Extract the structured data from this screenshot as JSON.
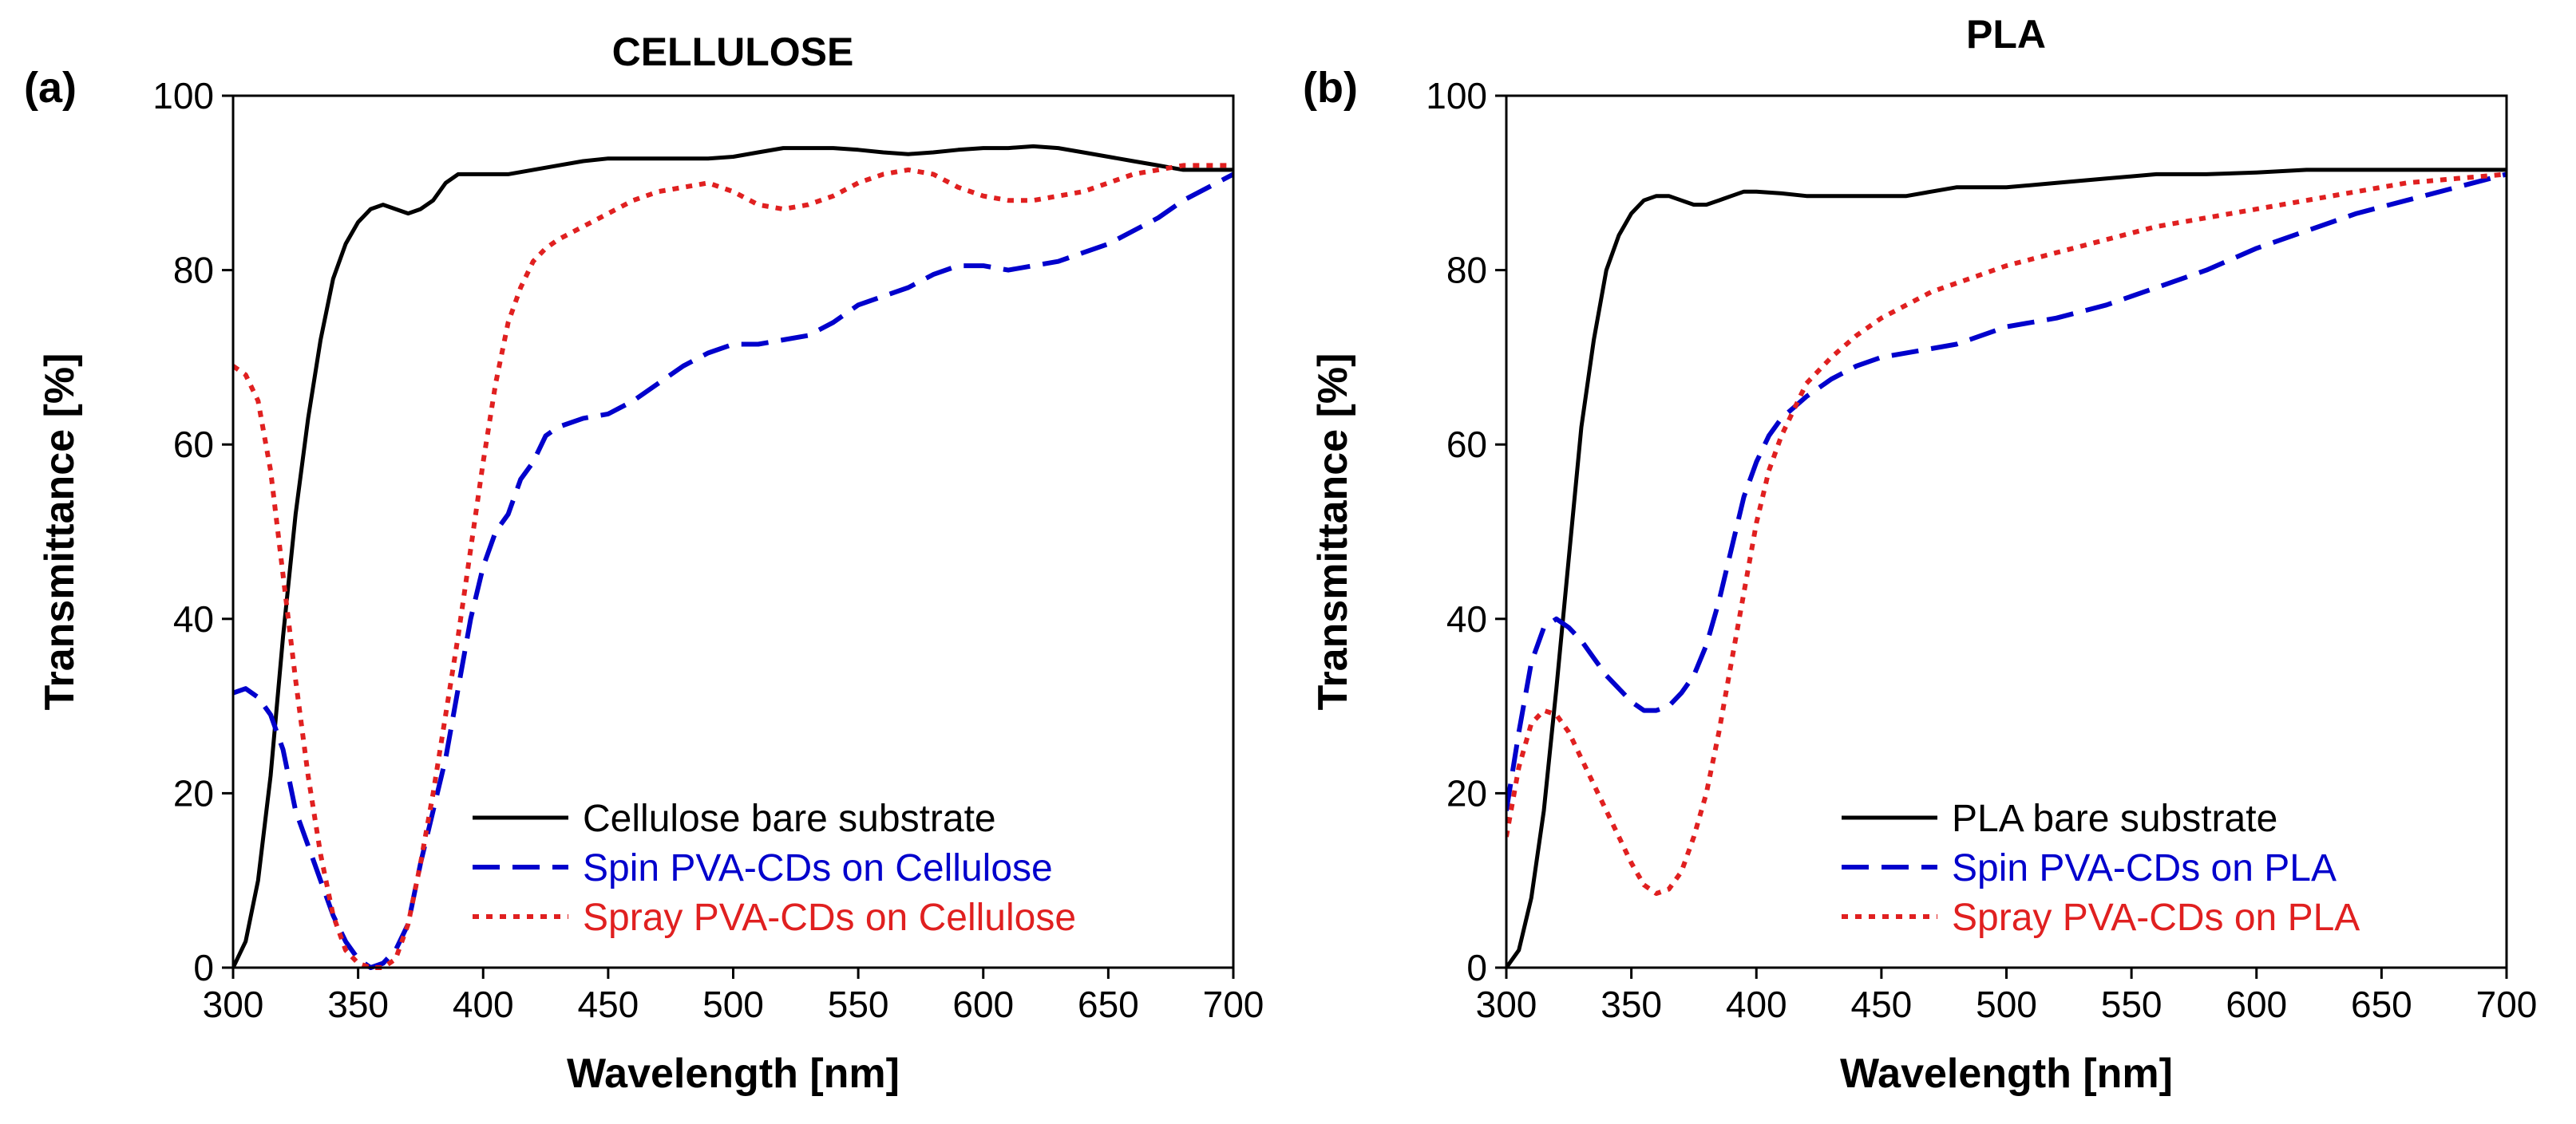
{
  "colors": {
    "bare": "#000000",
    "spin": "#0000CC",
    "spray": "#E02020"
  },
  "chart_data": [
    {
      "type": "line",
      "panel_label": "(a)",
      "title": "CELLULOSE",
      "xlabel": "Wavelength [nm]",
      "ylabel": "Transmittance [%]",
      "xlim": [
        300,
        700
      ],
      "ylim": [
        0,
        100
      ],
      "xticks": [
        300,
        350,
        400,
        450,
        500,
        550,
        600,
        650,
        700
      ],
      "yticks": [
        0,
        20,
        40,
        60,
        80,
        100
      ],
      "legend_position": "bottom-right",
      "series": [
        {
          "name": "Cellulose bare substrate",
          "style": "solid",
          "color_key": "bare",
          "x": [
            300,
            305,
            310,
            315,
            320,
            325,
            330,
            335,
            340,
            345,
            350,
            355,
            360,
            365,
            370,
            375,
            380,
            385,
            390,
            395,
            400,
            410,
            420,
            430,
            440,
            450,
            460,
            470,
            480,
            490,
            500,
            510,
            520,
            530,
            540,
            550,
            560,
            570,
            580,
            590,
            600,
            610,
            620,
            630,
            640,
            650,
            660,
            670,
            680,
            690,
            700
          ],
          "y": [
            0,
            3,
            10,
            22,
            38,
            52,
            63,
            72,
            79,
            83,
            85.5,
            87,
            87.5,
            87,
            86.5,
            87,
            88,
            90,
            91,
            91,
            91,
            91,
            91.5,
            92,
            92.5,
            92.8,
            92.8,
            92.8,
            92.8,
            92.8,
            93,
            93.5,
            94,
            94,
            94,
            93.8,
            93.5,
            93.3,
            93.5,
            93.8,
            94,
            94,
            94.2,
            94,
            93.5,
            93,
            92.5,
            92,
            91.5,
            91.5,
            91.5
          ]
        },
        {
          "name": "Spin PVA-CDs on Cellulose",
          "style": "dashed",
          "color_key": "spin",
          "x": [
            300,
            305,
            310,
            315,
            320,
            325,
            330,
            335,
            340,
            345,
            350,
            355,
            360,
            365,
            370,
            375,
            380,
            385,
            390,
            395,
            400,
            405,
            410,
            415,
            420,
            425,
            430,
            440,
            450,
            460,
            470,
            480,
            490,
            500,
            510,
            520,
            530,
            540,
            550,
            560,
            570,
            580,
            590,
            600,
            610,
            620,
            630,
            640,
            650,
            660,
            670,
            680,
            690,
            700
          ],
          "y": [
            31.5,
            32,
            31,
            29,
            25,
            18,
            14,
            10,
            6,
            3,
            1,
            0,
            0.5,
            2,
            5,
            12,
            18,
            24,
            32,
            40,
            46,
            50,
            52,
            56,
            58,
            61,
            62,
            63,
            63.5,
            65,
            67,
            69,
            70.5,
            71.5,
            71.5,
            72,
            72.5,
            74,
            76,
            77,
            78,
            79.5,
            80.5,
            80.5,
            80,
            80.5,
            81,
            82,
            83,
            84.5,
            86,
            88,
            89.5,
            91
          ]
        },
        {
          "name": "Spray PVA-CDs on Cellulose",
          "style": "dotted",
          "color_key": "spray",
          "x": [
            300,
            305,
            310,
            315,
            320,
            325,
            330,
            335,
            340,
            345,
            350,
            355,
            360,
            365,
            370,
            375,
            380,
            385,
            390,
            395,
            400,
            405,
            410,
            415,
            420,
            425,
            430,
            440,
            450,
            460,
            470,
            480,
            490,
            500,
            510,
            520,
            530,
            540,
            550,
            560,
            570,
            580,
            590,
            600,
            610,
            620,
            630,
            640,
            650,
            660,
            670,
            680,
            690,
            700
          ],
          "y": [
            69,
            68,
            65,
            57,
            45,
            33,
            22,
            13,
            6,
            2,
            0.5,
            0,
            0,
            1,
            5,
            12,
            20,
            29,
            38,
            48,
            58,
            67,
            74,
            78,
            81,
            82.5,
            83.5,
            85,
            86.5,
            88,
            89,
            89.5,
            90,
            89,
            87.5,
            87,
            87.5,
            88.5,
            90,
            91,
            91.5,
            91,
            89.5,
            88.5,
            88,
            88,
            88.5,
            89,
            90,
            91,
            91.5,
            92,
            92,
            92
          ]
        }
      ]
    },
    {
      "type": "line",
      "panel_label": "(b)",
      "title": "PLA",
      "xlabel": "Wavelength [nm]",
      "ylabel": "Transmittance [%]",
      "xlim": [
        300,
        700
      ],
      "ylim": [
        0,
        100
      ],
      "xticks": [
        300,
        350,
        400,
        450,
        500,
        550,
        600,
        650,
        700
      ],
      "yticks": [
        0,
        20,
        40,
        60,
        80,
        100
      ],
      "legend_position": "bottom-right",
      "series": [
        {
          "name": "PLA bare substrate",
          "style": "solid",
          "color_key": "bare",
          "x": [
            300,
            305,
            310,
            315,
            320,
            325,
            330,
            335,
            340,
            345,
            350,
            355,
            360,
            365,
            370,
            375,
            380,
            385,
            390,
            395,
            400,
            410,
            420,
            430,
            440,
            450,
            460,
            470,
            480,
            490,
            500,
            520,
            540,
            560,
            580,
            600,
            620,
            640,
            660,
            680,
            700
          ],
          "y": [
            0,
            2,
            8,
            18,
            32,
            47,
            62,
            72,
            80,
            84,
            86.5,
            88,
            88.5,
            88.5,
            88,
            87.5,
            87.5,
            88,
            88.5,
            89,
            89,
            88.8,
            88.5,
            88.5,
            88.5,
            88.5,
            88.5,
            89,
            89.5,
            89.5,
            89.5,
            90,
            90.5,
            91,
            91,
            91.2,
            91.5,
            91.5,
            91.5,
            91.5,
            91.5
          ]
        },
        {
          "name": "Spin PVA-CDs on PLA",
          "style": "dashed",
          "color_key": "spin",
          "x": [
            300,
            305,
            310,
            315,
            320,
            325,
            330,
            335,
            340,
            345,
            350,
            355,
            360,
            365,
            370,
            375,
            380,
            385,
            390,
            395,
            400,
            405,
            410,
            420,
            430,
            440,
            450,
            460,
            470,
            480,
            490,
            500,
            520,
            540,
            560,
            580,
            600,
            620,
            640,
            660,
            680,
            700
          ],
          "y": [
            18,
            27,
            35,
            39,
            40,
            39,
            37.5,
            35.5,
            33.5,
            32,
            30.5,
            29.5,
            29.5,
            30,
            31.5,
            33.5,
            37,
            42,
            48,
            54,
            58,
            61,
            63,
            65.5,
            67.5,
            69,
            70,
            70.5,
            71,
            71.5,
            72.5,
            73.5,
            74.5,
            76,
            78,
            80,
            82.5,
            84.5,
            86.5,
            88,
            89.5,
            91
          ]
        },
        {
          "name": "Spray PVA-CDs on PLA",
          "style": "dotted",
          "color_key": "spray",
          "x": [
            300,
            305,
            310,
            315,
            320,
            325,
            330,
            335,
            340,
            345,
            350,
            355,
            360,
            365,
            370,
            375,
            380,
            385,
            390,
            395,
            400,
            405,
            410,
            415,
            420,
            430,
            440,
            450,
            460,
            470,
            480,
            490,
            500,
            520,
            540,
            560,
            580,
            600,
            620,
            640,
            660,
            680,
            700
          ],
          "y": [
            15,
            23,
            28,
            29.5,
            29,
            27,
            24,
            21,
            18,
            15,
            12,
            9.5,
            8.5,
            9,
            11,
            15,
            20,
            27,
            35,
            43,
            51,
            57,
            61,
            64,
            67,
            70,
            72.5,
            74.5,
            76,
            77.5,
            78.5,
            79.5,
            80.5,
            82,
            83.5,
            85,
            86,
            87,
            88,
            89,
            90,
            90.5,
            91
          ]
        }
      ]
    }
  ]
}
